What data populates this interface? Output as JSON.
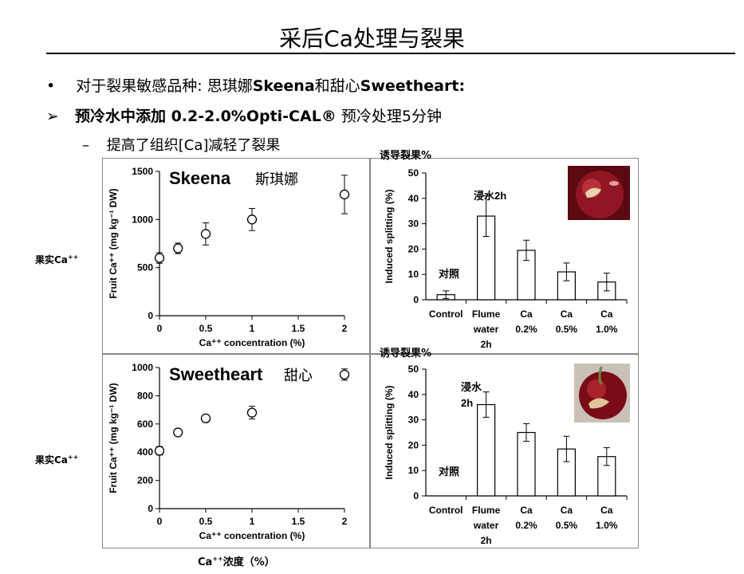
{
  "slide": {
    "title": "采后Ca处理与裂果",
    "bullet1": {
      "marker": "•",
      "prefix": "对于裂果敏感品种: 思琪娜",
      "b1": "Skeena",
      "mid": "和甜心",
      "b2": "Sweetheart:"
    },
    "bullet2": {
      "marker": "➢",
      "prefix": "预冷水中添加 0.2-2.0%",
      "bold": "Opti-CAL®",
      "suffix": " 预冷处理5分钟"
    },
    "bullet3": {
      "marker": "–",
      "text": "提高了组织[Ca]减轻了裂果"
    },
    "side_label_top": "果实Ca",
    "side_label_bottom": "果实Ca",
    "superscript": "++",
    "bottom_label_main": "Ca",
    "bottom_label_sup": "++",
    "bottom_label_rest": "浓度（%）"
  },
  "chart_data": [
    {
      "type": "scatter",
      "variety": "Skeena",
      "variety_cn": "斯琪娜",
      "ylabel": "Fruit Ca⁺⁺ (mg kg⁻¹ DW)",
      "xlabel": "Ca⁺⁺ concentration (%)",
      "x_ticks": [
        "0",
        "0.5",
        "1",
        "1.5",
        "2"
      ],
      "y_ticks": [
        "0",
        "500",
        "1000",
        "1500"
      ],
      "xlim": [
        0,
        2
      ],
      "ylim": [
        0,
        1500
      ],
      "x": [
        0,
        0.2,
        0.5,
        1.0,
        2.0
      ],
      "y": [
        600,
        700,
        850,
        1000,
        1260
      ],
      "err": [
        55,
        55,
        115,
        115,
        200
      ]
    },
    {
      "type": "bar",
      "header": "诱导裂果%",
      "ylabel": "Induced splitting (%)",
      "categories": [
        "Control",
        "Flume water 2h",
        "Ca 0.2%",
        "Ca 0.5%",
        "Ca 1.0%"
      ],
      "category_lines": [
        [
          "Control"
        ],
        [
          "Flume",
          "water",
          "2h"
        ],
        [
          "Ca",
          "0.2%"
        ],
        [
          "Ca",
          "0.5%"
        ],
        [
          "Ca",
          "1.0%"
        ]
      ],
      "values": [
        2,
        33,
        19.5,
        11,
        7
      ],
      "err": [
        1.5,
        8,
        4,
        3.5,
        3.5
      ],
      "y_ticks": [
        "0",
        "10",
        "20",
        "30",
        "40",
        "50"
      ],
      "ylim": [
        0,
        50
      ],
      "annotations": [
        "浸水2h",
        "对照"
      ]
    },
    {
      "type": "scatter",
      "variety": "Sweetheart",
      "variety_cn": "甜心",
      "ylabel": "Fruit Ca⁺⁺ (mg kg⁻¹ DW)",
      "xlabel": "Ca⁺⁺ concentration (%)",
      "x_ticks": [
        "0",
        "0.5",
        "1",
        "1.5",
        "2"
      ],
      "y_ticks": [
        "0",
        "200",
        "400",
        "600",
        "800",
        "1000"
      ],
      "xlim": [
        0,
        2
      ],
      "ylim": [
        0,
        1000
      ],
      "x": [
        0,
        0.2,
        0.5,
        1.0,
        2.0
      ],
      "y": [
        410,
        540,
        640,
        680,
        950
      ],
      "err": [
        30,
        15,
        25,
        45,
        40
      ]
    },
    {
      "type": "bar",
      "header": "诱导裂果%",
      "ylabel": "Induced splitting (%)",
      "categories": [
        "Control",
        "Flume water 2h",
        "Ca 0.2%",
        "Ca 0.5%",
        "Ca 1.0%"
      ],
      "category_lines": [
        [
          "Control"
        ],
        [
          "Flume",
          "water",
          "2h"
        ],
        [
          "Ca",
          "0.2%"
        ],
        [
          "Ca",
          "0.5%"
        ],
        [
          "Ca",
          "1.0%"
        ]
      ],
      "values": [
        0,
        36,
        25,
        18.5,
        15.5
      ],
      "err": [
        0,
        5,
        3.5,
        5,
        3.5
      ],
      "y_ticks": [
        "0",
        "10",
        "20",
        "30",
        "40",
        "50"
      ],
      "ylim": [
        0,
        50
      ],
      "annotations": [
        "浸水",
        "2h",
        "对照"
      ]
    }
  ]
}
